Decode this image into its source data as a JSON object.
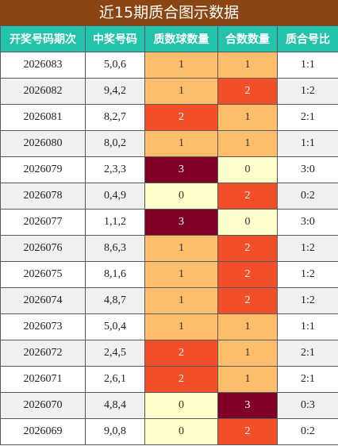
{
  "title": "近15期质合图示数据",
  "headers": [
    "开奖号码期次",
    "中奖号码",
    "质数球数量",
    "合数数量",
    "质合号比"
  ],
  "colors": {
    "title_bg": "#8b4513",
    "header_bg": "#22c3aa",
    "level_0": "#ffffcc",
    "level_1": "#fdbd6a",
    "level_2": "#f24e2a",
    "level_3": "#800026"
  },
  "rows": [
    {
      "period": "2026083",
      "numbers": "5,0,6",
      "prime": "1",
      "composite": "1",
      "ratio": "1:1"
    },
    {
      "period": "2026082",
      "numbers": "9,4,2",
      "prime": "1",
      "composite": "2",
      "ratio": "1:2"
    },
    {
      "period": "2026081",
      "numbers": "8,2,7",
      "prime": "2",
      "composite": "1",
      "ratio": "2:1"
    },
    {
      "period": "2026080",
      "numbers": "8,0,2",
      "prime": "1",
      "composite": "1",
      "ratio": "1:1"
    },
    {
      "period": "2026079",
      "numbers": "2,3,3",
      "prime": "3",
      "composite": "0",
      "ratio": "3:0"
    },
    {
      "period": "2026078",
      "numbers": "0,4,9",
      "prime": "0",
      "composite": "2",
      "ratio": "0:2"
    },
    {
      "period": "2026077",
      "numbers": "1,1,2",
      "prime": "3",
      "composite": "0",
      "ratio": "3:0"
    },
    {
      "period": "2026076",
      "numbers": "8,6,3",
      "prime": "1",
      "composite": "2",
      "ratio": "1:2"
    },
    {
      "period": "2026075",
      "numbers": "8,1,6",
      "prime": "1",
      "composite": "2",
      "ratio": "1:2"
    },
    {
      "period": "2026074",
      "numbers": "4,8,7",
      "prime": "1",
      "composite": "2",
      "ratio": "1:2"
    },
    {
      "period": "2026073",
      "numbers": "5,0,4",
      "prime": "1",
      "composite": "1",
      "ratio": "1:1"
    },
    {
      "period": "2026072",
      "numbers": "2,4,5",
      "prime": "2",
      "composite": "1",
      "ratio": "2:1"
    },
    {
      "period": "2026071",
      "numbers": "2,6,1",
      "prime": "2",
      "composite": "1",
      "ratio": "2:1"
    },
    {
      "period": "2026070",
      "numbers": "4,8,4",
      "prime": "0",
      "composite": "3",
      "ratio": "0:3"
    },
    {
      "period": "2026069",
      "numbers": "9,0,8",
      "prime": "0",
      "composite": "2",
      "ratio": "0:2"
    }
  ]
}
